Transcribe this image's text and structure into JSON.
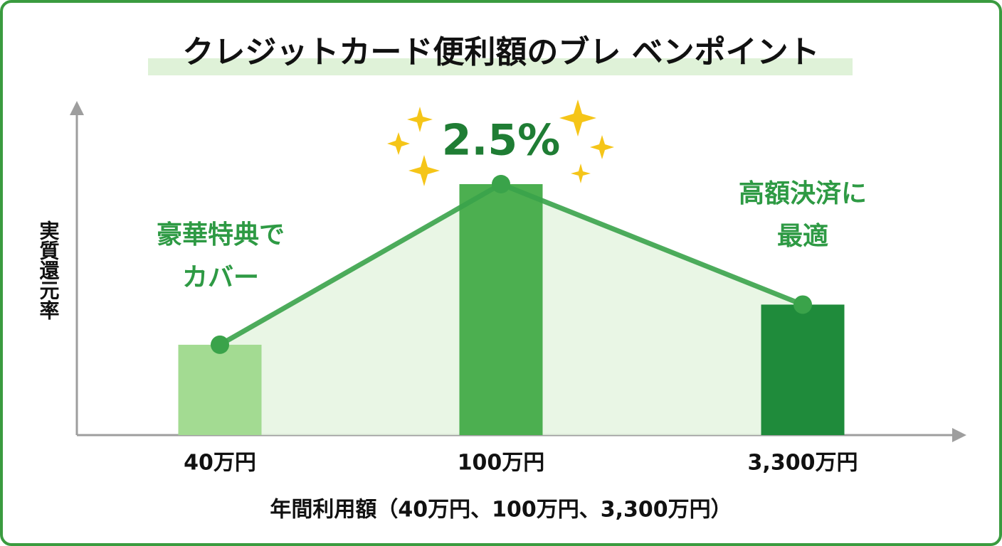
{
  "chart_data": {
    "type": "bar",
    "title": "クレジットカード便利額のブレ ベンポイント",
    "ylabel": "実質還元率",
    "xlabel": "年間利用額（40万円、100万円、3,300万円）",
    "categories": [
      "40万円",
      "100万円",
      "3,300万円"
    ],
    "values": [
      0.9,
      2.5,
      1.3
    ],
    "value_labels": [
      null,
      "2.5%",
      null
    ],
    "colors": [
      "#a3db92",
      "#4caf50",
      "#1f8b3b"
    ],
    "line_color": "#3aa34a",
    "annotations": [
      {
        "lines": [
          "豪華特典で",
          "カバー"
        ]
      },
      {
        "lines": [
          "高額決済に",
          "最適"
        ]
      }
    ]
  }
}
